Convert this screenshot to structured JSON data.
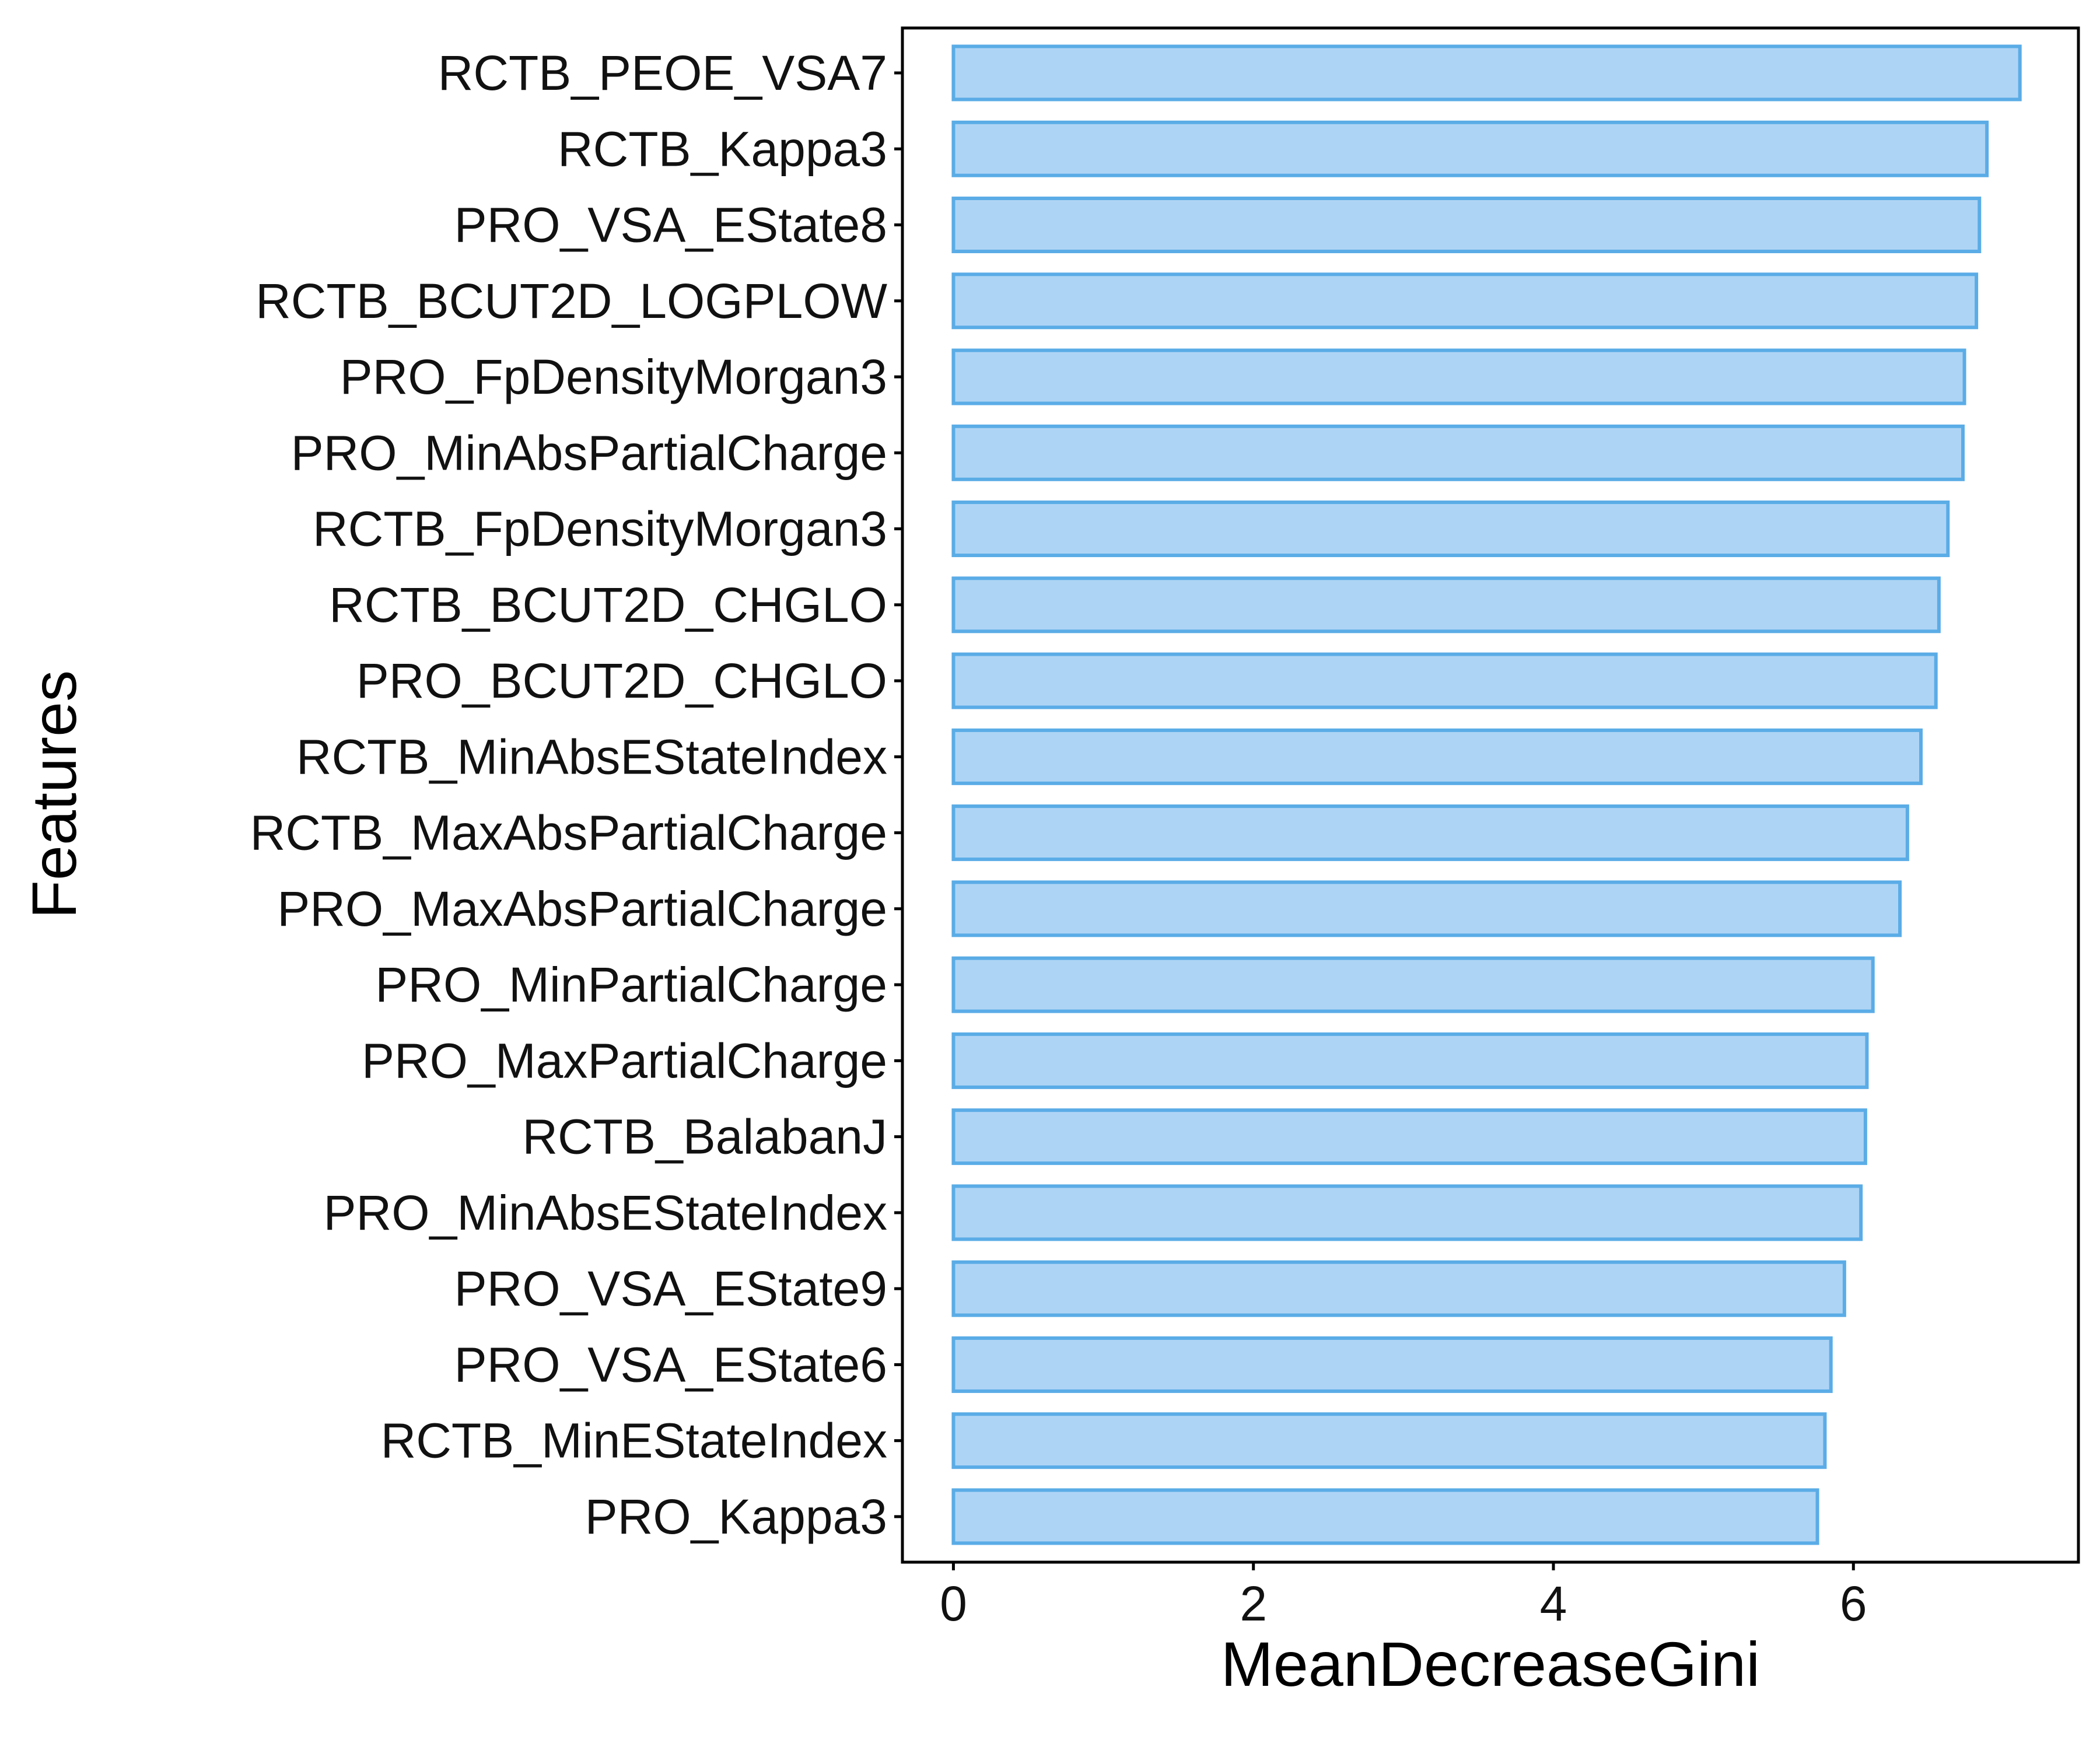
{
  "chart_data": {
    "type": "bar",
    "orientation": "horizontal",
    "title": "",
    "xlabel": "MeanDecreaseGini",
    "ylabel": "Features",
    "xlim": [
      -0.34,
      7.5
    ],
    "xticks": [
      0,
      2,
      4,
      6
    ],
    "grid": false,
    "legend": "none",
    "bar_fill": "#aed4f5",
    "bar_edge": "#5aace6",
    "categories": [
      "RCTB_PEOE_VSA7",
      "RCTB_Kappa3",
      "PRO_VSA_EState8",
      "RCTB_BCUT2D_LOGPLOW",
      "PRO_FpDensityMorgan3",
      "PRO_MinAbsPartialCharge",
      "RCTB_FpDensityMorgan3",
      "RCTB_BCUT2D_CHGLO",
      "PRO_BCUT2D_CHGLO",
      "RCTB_MinAbsEStateIndex",
      "RCTB_MaxAbsPartialCharge",
      "PRO_MaxAbsPartialCharge",
      "PRO_MinPartialCharge",
      "PRO_MaxPartialCharge",
      "RCTB_BalabanJ",
      "PRO_MinAbsEStateIndex",
      "PRO_VSA_EState9",
      "PRO_VSA_EState6",
      "RCTB_MinEStateIndex",
      "PRO_Kappa3"
    ],
    "values": [
      7.11,
      6.89,
      6.84,
      6.82,
      6.74,
      6.73,
      6.63,
      6.57,
      6.55,
      6.45,
      6.36,
      6.31,
      6.13,
      6.09,
      6.08,
      6.05,
      5.94,
      5.85,
      5.81,
      5.76
    ]
  }
}
